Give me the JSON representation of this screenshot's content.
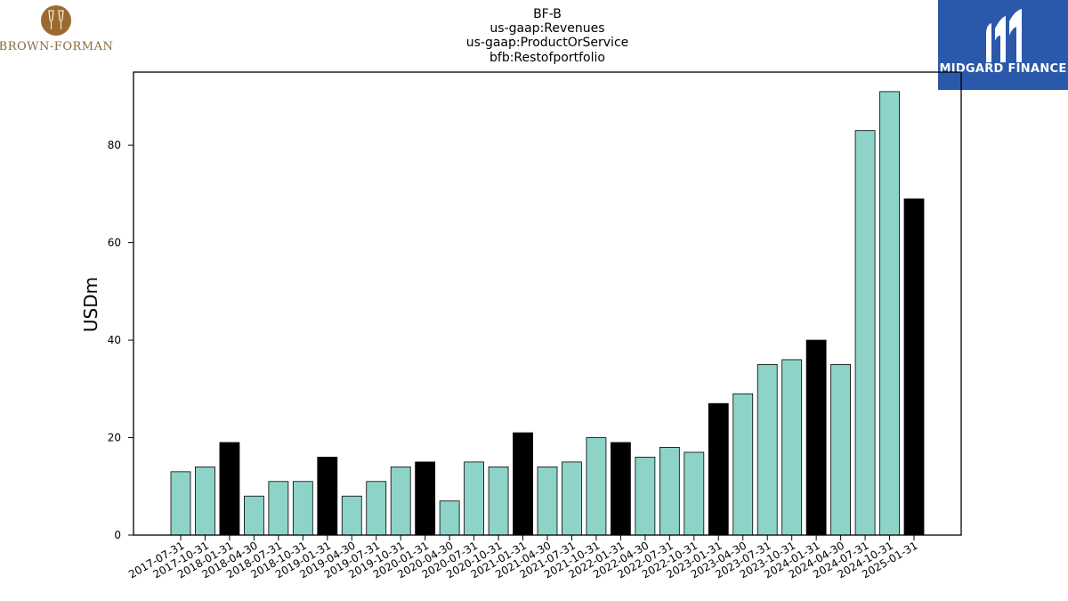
{
  "logos": {
    "left": {
      "text": "BROWN-FORMAN",
      "icon": "wine-glasses-icon",
      "color": "#9b6a2f"
    },
    "right": {
      "text": "MIDGARD FINANCE",
      "icon": "midgard-m-icon",
      "color": "#2a58ab"
    }
  },
  "chart_data": {
    "type": "bar",
    "title_lines": [
      "BF-B",
      "us-gaap:Revenues",
      "us-gaap:ProductOrService",
      "bfb:Restofportfolio"
    ],
    "ylabel": "USDm",
    "xlabel": "",
    "ylim": [
      0,
      95
    ],
    "yticks": [
      0,
      20,
      40,
      60,
      80
    ],
    "grid": false,
    "colors": {
      "quarter": "#8dd3c7",
      "year_end": "#000000"
    },
    "categories": [
      "2017-07-31",
      "2017-10-31",
      "2018-01-31",
      "2018-04-30",
      "2018-07-31",
      "2018-10-31",
      "2019-01-31",
      "2019-04-30",
      "2019-07-31",
      "2019-10-31",
      "2020-01-31",
      "2020-04-30",
      "2020-07-31",
      "2020-10-31",
      "2021-01-31",
      "2021-04-30",
      "2021-07-31",
      "2021-10-31",
      "2022-01-31",
      "2022-04-30",
      "2022-07-31",
      "2022-10-31",
      "2023-01-31",
      "2023-04-30",
      "2023-07-31",
      "2023-10-31",
      "2024-01-31",
      "2024-04-30",
      "2024-07-31",
      "2024-10-31",
      "2025-01-31"
    ],
    "values": [
      13,
      14,
      19,
      8,
      11,
      11,
      16,
      8,
      11,
      14,
      15,
      7,
      15,
      14,
      21,
      14,
      15,
      20,
      19,
      16,
      18,
      17,
      27,
      29,
      35,
      36,
      40,
      35,
      83,
      91,
      69
    ],
    "highlight": [
      false,
      false,
      true,
      false,
      false,
      false,
      true,
      false,
      false,
      false,
      true,
      false,
      false,
      false,
      true,
      false,
      false,
      false,
      true,
      false,
      false,
      false,
      true,
      false,
      false,
      false,
      true,
      false,
      false,
      false,
      true
    ]
  }
}
